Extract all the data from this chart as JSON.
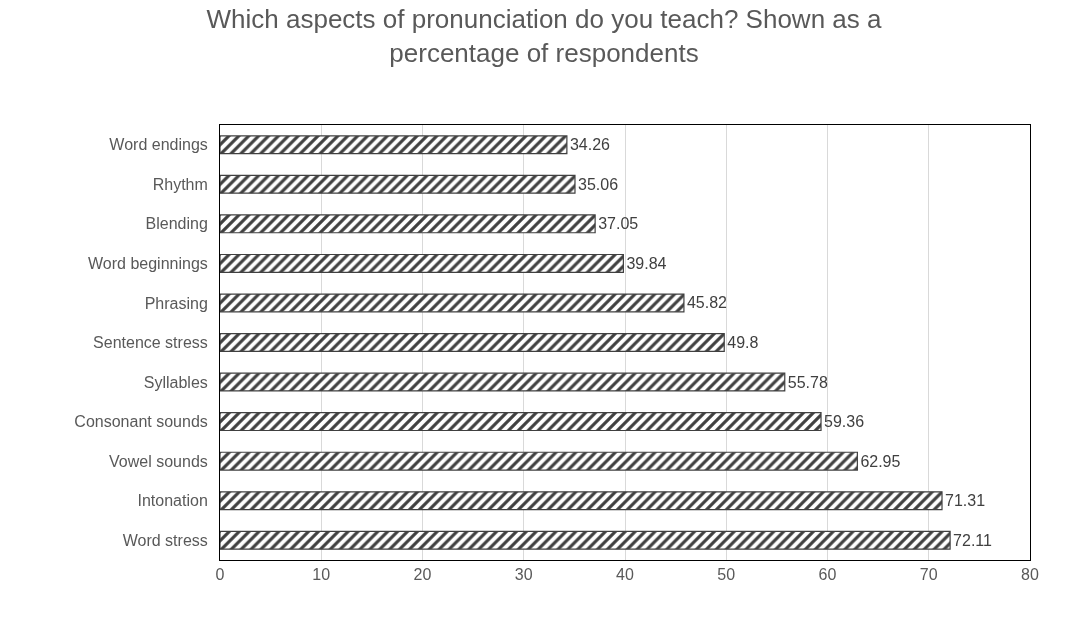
{
  "chart_data": {
    "type": "bar",
    "orientation": "horizontal",
    "title": "Which aspects of pronunciation do you teach? Shown as a percentage of respondents",
    "categories": [
      "Word endings",
      "Rhythm",
      "Blending",
      "Word beginnings",
      "Phrasing",
      "Sentence stress",
      "Syllables",
      "Consonant sounds",
      "Vowel sounds",
      "Intonation",
      "Word stress"
    ],
    "values": [
      34.26,
      35.06,
      37.05,
      39.84,
      45.82,
      49.8,
      55.78,
      59.36,
      62.95,
      71.31,
      72.11
    ],
    "color": "#404040",
    "xlim": [
      0,
      80
    ],
    "xticks": [
      0,
      10,
      20,
      30,
      40,
      50,
      60,
      70,
      80
    ],
    "grid": "x",
    "data_labels": true
  }
}
